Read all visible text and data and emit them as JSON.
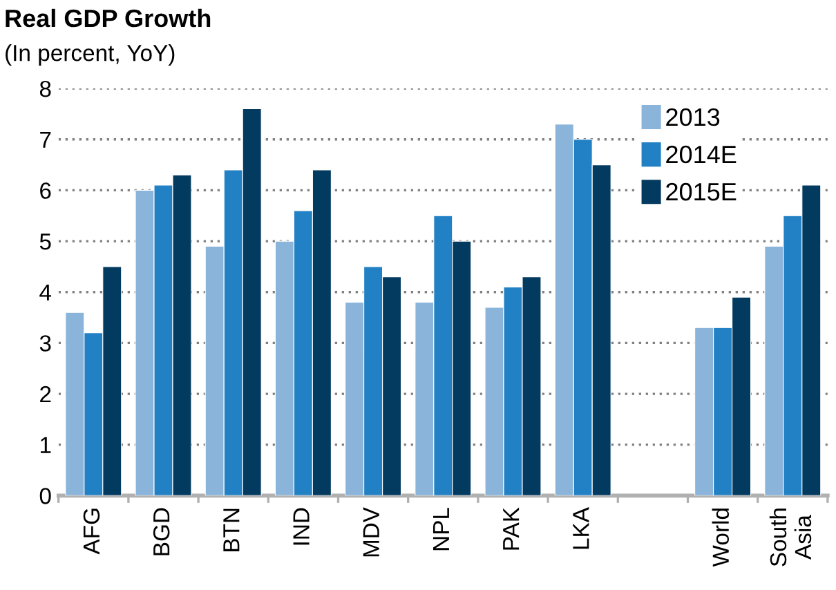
{
  "chart_data": {
    "type": "bar",
    "title": "Real GDP Growth",
    "subtitle": "(In percent, YoY)",
    "categories": [
      "AFG",
      "BGD",
      "BTN",
      "IND",
      "MDV",
      "NPL",
      "PAK",
      "LKA",
      null,
      "World",
      "South\nAsia"
    ],
    "series": [
      {
        "name": "2013",
        "color": "#8ab4da",
        "values": [
          3.6,
          6.0,
          4.9,
          5.0,
          3.8,
          3.8,
          3.7,
          7.3,
          null,
          3.3,
          4.9
        ]
      },
      {
        "name": "2014E",
        "color": "#2281c4",
        "values": [
          3.2,
          6.1,
          6.4,
          5.6,
          4.5,
          5.5,
          4.1,
          7.0,
          null,
          3.3,
          5.5
        ]
      },
      {
        "name": "2015E",
        "color": "#033a5f",
        "values": [
          4.5,
          6.3,
          7.6,
          6.4,
          4.3,
          5.0,
          4.3,
          6.5,
          null,
          3.9,
          6.1
        ]
      }
    ],
    "ylim": [
      0,
      8
    ],
    "yticks": [
      0,
      1,
      2,
      3,
      4,
      5,
      6,
      7,
      8
    ],
    "grid": "y",
    "legend": "top right"
  }
}
